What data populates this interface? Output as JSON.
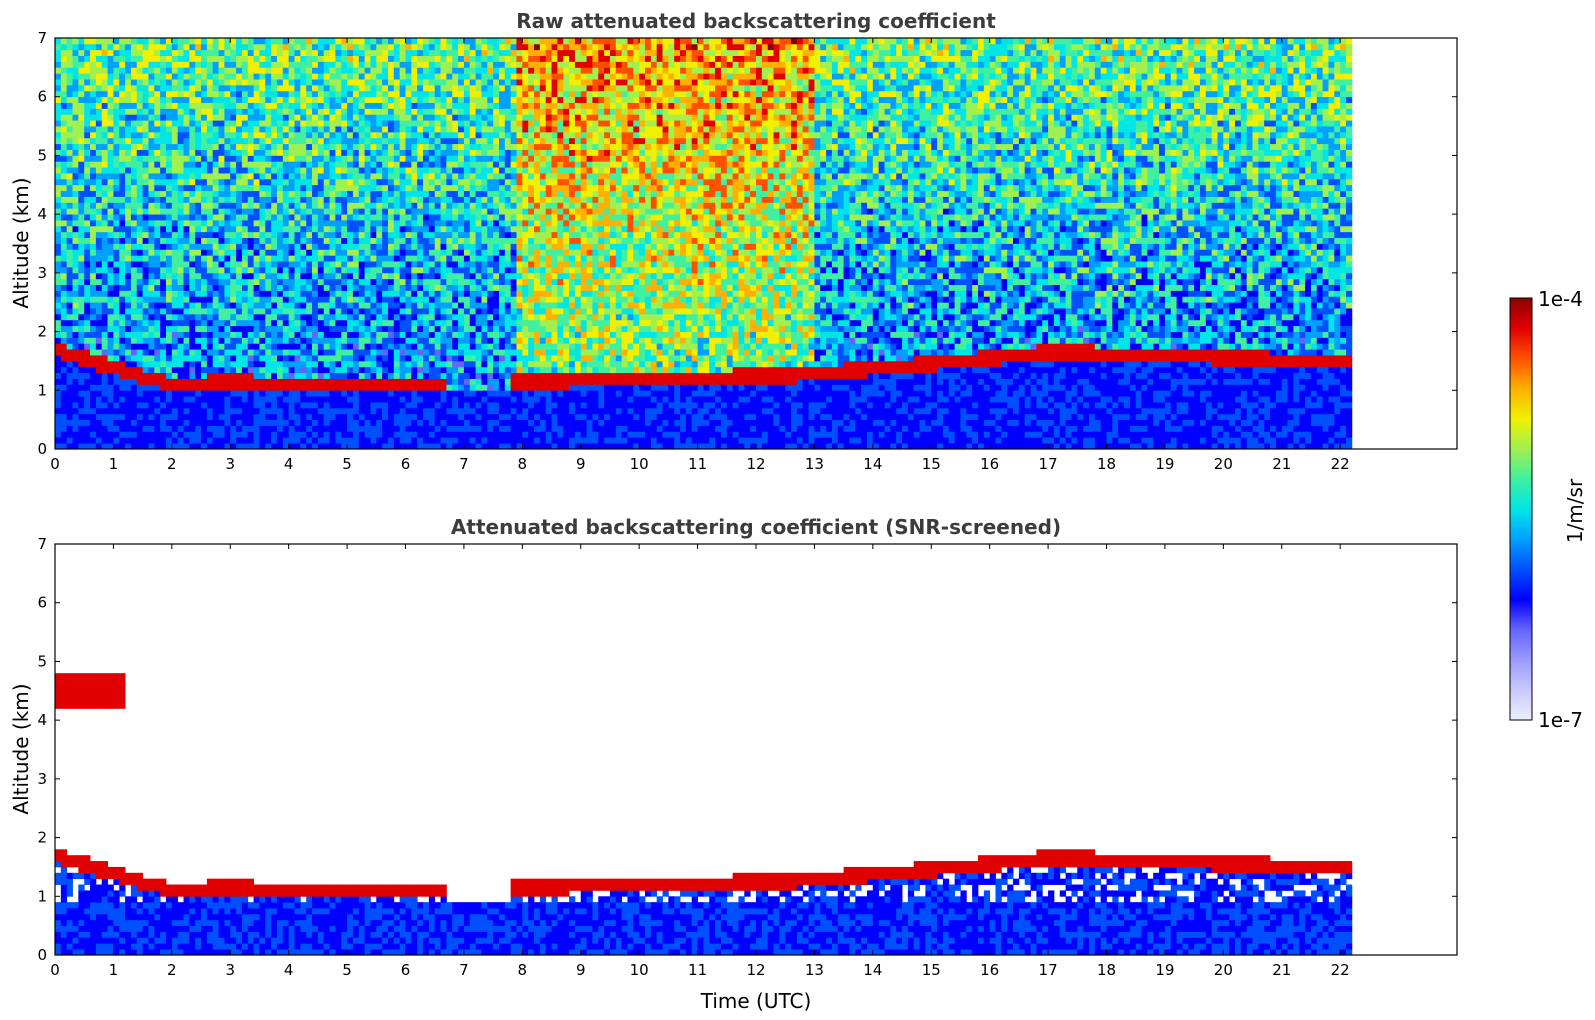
{
  "chart_data": [
    {
      "type": "heatmap",
      "title": "Raw attenuated backscattering coefficient",
      "xlabel": "",
      "ylabel": "Altitude (km)",
      "xlim": [
        0,
        24
      ],
      "ylim": [
        0,
        7
      ],
      "xticks": [
        "0",
        "1",
        "2",
        "3",
        "4",
        "5",
        "6",
        "7",
        "8",
        "9",
        "10",
        "11",
        "12",
        "13",
        "14",
        "15",
        "16",
        "17",
        "18",
        "19",
        "20",
        "21",
        "22"
      ],
      "yticks": [
        "0",
        "1",
        "2",
        "3",
        "4",
        "5",
        "6",
        "7"
      ],
      "data_end_time": 22.2,
      "cloud_layer_base_km": [
        {
          "t": 0,
          "z": 1.7
        },
        {
          "t": 1.3,
          "z": 1.3
        },
        {
          "t": 2.0,
          "z": 1.1
        },
        {
          "t": 3.0,
          "z": 1.15
        },
        {
          "t": 4.0,
          "z": 1.1
        },
        {
          "t": 6.6,
          "z": 1.1
        },
        {
          "t": 7.9,
          "z": 1.15
        },
        {
          "t": 12.5,
          "z": 1.25
        },
        {
          "t": 15.5,
          "z": 1.5
        },
        {
          "t": 17.0,
          "z": 1.65
        },
        {
          "t": 19.0,
          "z": 1.6
        },
        {
          "t": 21.6,
          "z": 1.5
        }
      ]
    },
    {
      "type": "heatmap",
      "title": "Attenuated backscattering coefficient (SNR-screened)",
      "xlabel": "Time (UTC)",
      "ylabel": "Altitude (km)",
      "xlim": [
        0,
        24
      ],
      "ylim": [
        0,
        7
      ],
      "xticks": [
        "0",
        "1",
        "2",
        "3",
        "4",
        "5",
        "6",
        "7",
        "8",
        "9",
        "10",
        "11",
        "12",
        "13",
        "14",
        "15",
        "16",
        "17",
        "18",
        "19",
        "20",
        "21",
        "22"
      ],
      "yticks": [
        "0",
        "1",
        "2",
        "3",
        "4",
        "5",
        "6",
        "7"
      ],
      "data_end_time": 22.2
    }
  ],
  "colorbar": {
    "max_label": "1e-4",
    "min_label": "1e-7",
    "unit": "1/m/sr",
    "colors": [
      "#eeeeff",
      "#c8c8ff",
      "#9a9aff",
      "#6464ff",
      "#0000ff",
      "#0050ff",
      "#00a0ff",
      "#00e6e6",
      "#40f0a0",
      "#a0f050",
      "#f0f000",
      "#ffb000",
      "#ff5000",
      "#e00000",
      "#8b0000"
    ]
  }
}
